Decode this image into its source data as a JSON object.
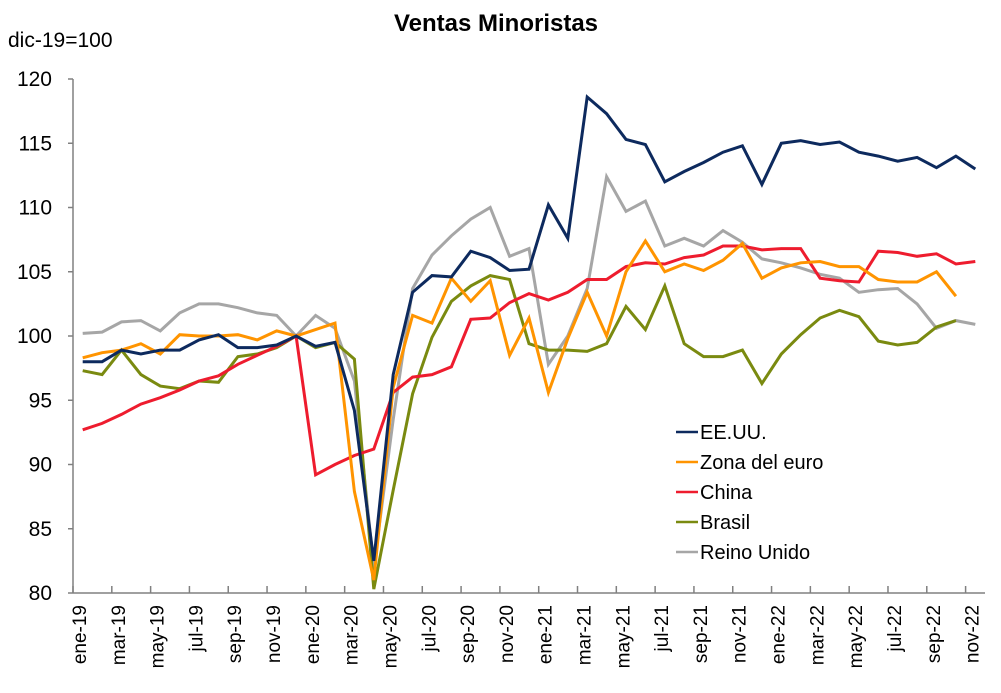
{
  "chart_data": {
    "type": "line",
    "title": "Ventas Minoristas",
    "ylabel": "dic-19=100",
    "xlabel": "",
    "ylim": [
      80,
      120
    ],
    "yticks": [
      80,
      85,
      90,
      95,
      100,
      105,
      110,
      115,
      120
    ],
    "grid": false,
    "legend_position": "bottom-right",
    "x": [
      "ene-19",
      "feb-19",
      "mar-19",
      "abr-19",
      "may-19",
      "jun-19",
      "jul-19",
      "ago-19",
      "sep-19",
      "oct-19",
      "nov-19",
      "dic-19",
      "ene-20",
      "feb-20",
      "mar-20",
      "abr-20",
      "may-20",
      "jun-20",
      "jul-20",
      "ago-20",
      "sep-20",
      "oct-20",
      "nov-20",
      "dic-20",
      "ene-21",
      "feb-21",
      "mar-21",
      "abr-21",
      "may-21",
      "jun-21",
      "jul-21",
      "ago-21",
      "sep-21",
      "oct-21",
      "nov-21",
      "dic-21",
      "ene-22",
      "feb-22",
      "mar-22",
      "abr-22",
      "may-22",
      "jun-22",
      "jul-22",
      "ago-22",
      "sep-22",
      "oct-22",
      "nov-22"
    ],
    "xtick_labels": [
      "ene-19",
      "mar-19",
      "may-19",
      "jul-19",
      "sep-19",
      "nov-19",
      "ene-20",
      "mar-20",
      "may-20",
      "jul-20",
      "sep-20",
      "nov-20",
      "ene-21",
      "mar-21",
      "may-21",
      "jul-21",
      "sep-21",
      "nov-21",
      "ene-22",
      "mar-22",
      "may-22",
      "jul-22",
      "sep-22",
      "nov-22"
    ],
    "series": [
      {
        "name": "EE.UU.",
        "color": "#0d2a5e",
        "values": [
          98.0,
          98.0,
          98.9,
          98.6,
          98.9,
          98.9,
          99.7,
          100.1,
          99.1,
          99.1,
          99.3,
          100.0,
          99.2,
          99.5,
          94.2,
          82.5,
          97.0,
          103.4,
          104.7,
          104.6,
          106.6,
          106.1,
          105.1,
          105.2,
          110.2,
          107.6,
          118.6,
          117.3,
          115.3,
          114.9,
          112.0,
          112.8,
          113.5,
          114.3,
          114.8,
          111.8,
          115.0,
          115.2,
          114.9,
          115.1,
          114.3,
          114.0,
          113.6,
          113.9,
          113.1,
          114.0,
          113.0
        ]
      },
      {
        "name": "Zona del euro",
        "color": "#ff9400",
        "values": [
          98.3,
          98.7,
          98.9,
          99.4,
          98.6,
          100.1,
          100.0,
          100.0,
          100.1,
          99.7,
          100.4,
          100.0,
          100.5,
          101.0,
          87.9,
          81.0,
          96.0,
          101.6,
          101.0,
          104.5,
          102.7,
          104.3,
          98.5,
          101.4,
          95.6,
          99.8,
          103.4,
          100.0,
          105.0,
          107.4,
          105.0,
          105.6,
          105.1,
          105.9,
          107.2,
          104.5,
          105.3,
          105.7,
          105.8,
          105.4,
          105.4,
          104.4,
          104.2,
          104.2,
          105.0,
          103.1,
          null
        ]
      },
      {
        "name": "China",
        "color": "#ee1c2e",
        "values": [
          92.7,
          93.2,
          93.9,
          94.7,
          95.2,
          95.8,
          96.5,
          96.9,
          97.8,
          98.5,
          99.2,
          100.0,
          89.2,
          90.0,
          90.7,
          91.2,
          95.6,
          96.8,
          97.0,
          97.6,
          101.3,
          101.4,
          102.6,
          103.3,
          102.8,
          103.4,
          104.4,
          104.4,
          105.4,
          105.7,
          105.6,
          106.1,
          106.3,
          107.0,
          107.0,
          106.7,
          106.8,
          106.8,
          104.5,
          104.3,
          104.2,
          106.6,
          106.5,
          106.2,
          106.4,
          105.6,
          105.8
        ]
      },
      {
        "name": "Brasil",
        "color": "#7a8a10",
        "values": [
          97.3,
          97.0,
          98.9,
          97.0,
          96.1,
          95.9,
          96.5,
          96.4,
          98.4,
          98.6,
          99.1,
          100.0,
          99.1,
          99.5,
          98.2,
          80.3,
          88.0,
          95.5,
          99.9,
          102.7,
          103.9,
          104.7,
          104.4,
          99.4,
          98.9,
          98.9,
          98.8,
          99.4,
          102.3,
          100.5,
          103.9,
          99.4,
          98.4,
          98.4,
          98.9,
          96.3,
          98.6,
          100.1,
          101.4,
          102.0,
          101.5,
          99.6,
          99.3,
          99.5,
          100.7,
          101.2,
          null
        ]
      },
      {
        "name": "Reino Unido",
        "color": "#a6a6a6",
        "values": [
          100.2,
          100.3,
          101.1,
          101.2,
          100.4,
          101.8,
          102.5,
          102.5,
          102.2,
          101.8,
          101.6,
          100.0,
          101.6,
          100.6,
          96.5,
          82.0,
          93.5,
          103.7,
          106.3,
          107.8,
          109.1,
          110.0,
          106.2,
          106.8,
          97.8,
          100.0,
          103.7,
          112.4,
          109.7,
          110.5,
          107.0,
          107.6,
          107.0,
          108.2,
          107.3,
          106.0,
          105.7,
          105.3,
          104.8,
          104.5,
          103.4,
          103.6,
          103.7,
          102.5,
          100.6,
          101.2,
          100.9
        ]
      }
    ]
  }
}
